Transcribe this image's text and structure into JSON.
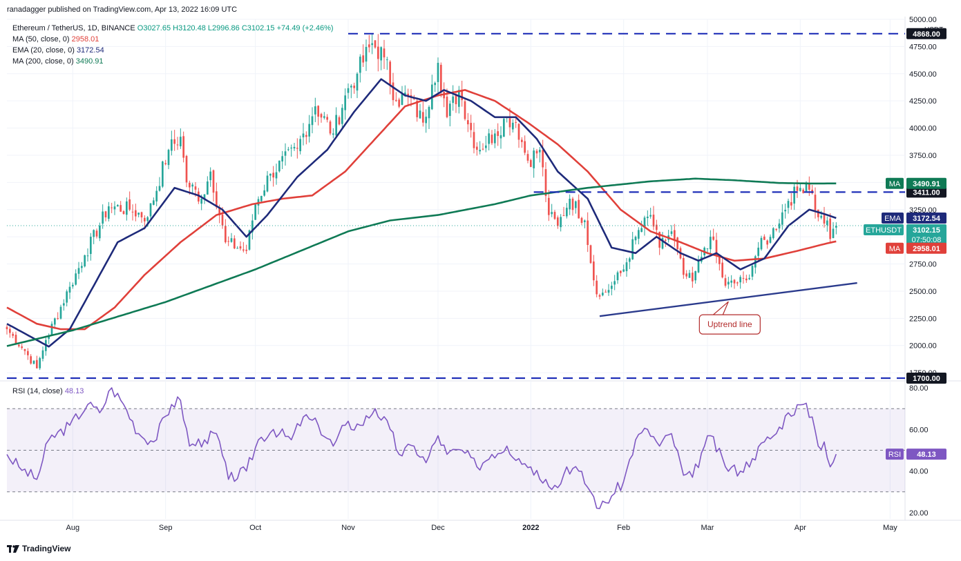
{
  "header": {
    "publisher": "ranadagger published on TradingView.com, Apr 13, 2022 16:09 UTC"
  },
  "legend": {
    "symbol": "Ethereum / TetherUS, 1D, BINANCE",
    "ohlc": "O3027.65  H3120.48  L2996.86  C3102.15  +74.49 (+2.46%)",
    "ma50_label": "MA (50, close, 0)",
    "ma50_value": "2958.01",
    "ema20_label": "EMA (20, close, 0)",
    "ema20_value": "3172.54",
    "ma200_label": "MA (200, close, 0)",
    "ma200_value": "3490.91"
  },
  "rsi_legend": {
    "label": "RSI (14, close)",
    "value": "48.13"
  },
  "footer": {
    "brand": "TradingView"
  },
  "colors": {
    "up": "#26a69a",
    "down": "#ef5350",
    "ema": "#1e2a7a",
    "ma50": "#e0403a",
    "ma200": "#0f7a55",
    "rsi": "#7e57c2",
    "levels": "#1f2fb8",
    "trend": "#2a3a8c",
    "annotation": "#b22a2a"
  },
  "chart_data": [
    {
      "type": "candlestick",
      "title": "Ethereum / TetherUS, 1D, BINANCE",
      "ylabel": "USDT",
      "ylim": [
        1700,
        5000
      ],
      "yticks": [
        1750,
        2000,
        2250,
        2500,
        2750,
        3000,
        3250,
        3500,
        3750,
        4000,
        4250,
        4500,
        4750,
        5000
      ],
      "ytick_labels": [
        "1750.00",
        "2000.00",
        "2250.00",
        "2500.00",
        "2750.00",
        "3000.00",
        "3250.00",
        "3500.00",
        "3750.00",
        "4000.00",
        "4250.00",
        "4500.00",
        "4750.00",
        "5000.00"
      ],
      "x_start": "2021-07-10",
      "x_end": "2022-05-06",
      "xticks": [
        {
          "date": "2021-08-01",
          "label": "Aug"
        },
        {
          "date": "2021-09-01",
          "label": "Sep"
        },
        {
          "date": "2021-10-01",
          "label": "Oct"
        },
        {
          "date": "2021-11-01",
          "label": "Nov"
        },
        {
          "date": "2021-12-01",
          "label": "Dec"
        },
        {
          "date": "2022-01-01",
          "label": "2022"
        },
        {
          "date": "2022-02-01",
          "label": "Feb"
        },
        {
          "date": "2022-03-01",
          "label": "Mar"
        },
        {
          "date": "2022-04-01",
          "label": "Apr"
        },
        {
          "date": "2022-05-01",
          "label": "May"
        }
      ],
      "close_anchors": [
        [
          "2021-07-10",
          2150
        ],
        [
          "2021-07-16",
          1950
        ],
        [
          "2021-07-20",
          1790
        ],
        [
          "2021-07-23",
          2050
        ],
        [
          "2021-07-31",
          2540
        ],
        [
          "2021-08-05",
          2830
        ],
        [
          "2021-08-13",
          3280
        ],
        [
          "2021-08-20",
          3250
        ],
        [
          "2021-08-26",
          3180
        ],
        [
          "2021-09-02",
          3800
        ],
        [
          "2021-09-06",
          3920
        ],
        [
          "2021-09-08",
          3500
        ],
        [
          "2021-09-13",
          3350
        ],
        [
          "2021-09-16",
          3600
        ],
        [
          "2021-09-21",
          2950
        ],
        [
          "2021-09-28",
          2870
        ],
        [
          "2021-10-01",
          3300
        ],
        [
          "2021-10-06",
          3580
        ],
        [
          "2021-10-15",
          3810
        ],
        [
          "2021-10-21",
          4200
        ],
        [
          "2021-10-27",
          3950
        ],
        [
          "2021-10-31",
          4300
        ],
        [
          "2021-11-04",
          4500
        ],
        [
          "2021-11-09",
          4780
        ],
        [
          "2021-11-13",
          4650
        ],
        [
          "2021-11-17",
          4250
        ],
        [
          "2021-11-21",
          4300
        ],
        [
          "2021-11-26",
          4050
        ],
        [
          "2021-11-29",
          4400
        ],
        [
          "2021-12-01",
          4600
        ],
        [
          "2021-12-04",
          4100
        ],
        [
          "2021-12-08",
          4350
        ],
        [
          "2021-12-14",
          3800
        ],
        [
          "2021-12-20",
          3950
        ],
        [
          "2021-12-24",
          4100
        ],
        [
          "2021-12-27",
          4050
        ],
        [
          "2021-12-31",
          3700
        ],
        [
          "2022-01-04",
          3800
        ],
        [
          "2022-01-07",
          3200
        ],
        [
          "2022-01-10",
          3100
        ],
        [
          "2022-01-14",
          3350
        ],
        [
          "2022-01-19",
          3150
        ],
        [
          "2022-01-22",
          2600
        ],
        [
          "2022-01-24",
          2450
        ],
        [
          "2022-01-28",
          2550
        ],
        [
          "2022-02-01",
          2700
        ],
        [
          "2022-02-05",
          3000
        ],
        [
          "2022-02-10",
          3200
        ],
        [
          "2022-02-13",
          2900
        ],
        [
          "2022-02-17",
          3050
        ],
        [
          "2022-02-21",
          2650
        ],
        [
          "2022-02-24",
          2590
        ],
        [
          "2022-02-28",
          2900
        ],
        [
          "2022-03-02",
          3000
        ],
        [
          "2022-03-07",
          2550
        ],
        [
          "2022-03-14",
          2600
        ],
        [
          "2022-03-18",
          2900
        ],
        [
          "2022-03-22",
          3000
        ],
        [
          "2022-03-28",
          3330
        ],
        [
          "2022-04-01",
          3450
        ],
        [
          "2022-04-03",
          3500
        ],
        [
          "2022-04-05",
          3400
        ],
        [
          "2022-04-07",
          3180
        ],
        [
          "2022-04-10",
          3150
        ],
        [
          "2022-04-11",
          2980
        ],
        [
          "2022-04-13",
          3102.15
        ]
      ],
      "moving_averages": [
        {
          "name": "MA (50, close, 0)",
          "color": "#e0403a",
          "points": [
            [
              "2021-07-10",
              2350
            ],
            [
              "2021-07-20",
              2200
            ],
            [
              "2021-07-28",
              2150
            ],
            [
              "2021-08-05",
              2150
            ],
            [
              "2021-08-15",
              2350
            ],
            [
              "2021-08-25",
              2650
            ],
            [
              "2021-09-06",
              2950
            ],
            [
              "2021-09-18",
              3200
            ],
            [
              "2021-09-30",
              3300
            ],
            [
              "2021-10-10",
              3350
            ],
            [
              "2021-10-20",
              3380
            ],
            [
              "2021-10-31",
              3600
            ],
            [
              "2021-11-10",
              3900
            ],
            [
              "2021-11-20",
              4200
            ],
            [
              "2021-12-01",
              4300
            ],
            [
              "2021-12-10",
              4350
            ],
            [
              "2021-12-20",
              4250
            ],
            [
              "2021-12-31",
              4050
            ],
            [
              "2022-01-10",
              3850
            ],
            [
              "2022-01-20",
              3600
            ],
            [
              "2022-01-31",
              3250
            ],
            [
              "2022-02-10",
              3050
            ],
            [
              "2022-02-20",
              2950
            ],
            [
              "2022-03-01",
              2850
            ],
            [
              "2022-03-10",
              2780
            ],
            [
              "2022-03-20",
              2800
            ],
            [
              "2022-03-31",
              2870
            ],
            [
              "2022-04-10",
              2940
            ],
            [
              "2022-04-13",
              2958.01
            ]
          ]
        },
        {
          "name": "EMA (20, close, 0)",
          "color": "#1e2a7a",
          "points": [
            [
              "2021-07-10",
              2200
            ],
            [
              "2021-07-18",
              2080
            ],
            [
              "2021-07-24",
              1990
            ],
            [
              "2021-07-31",
              2150
            ],
            [
              "2021-08-08",
              2550
            ],
            [
              "2021-08-16",
              2950
            ],
            [
              "2021-08-25",
              3080
            ],
            [
              "2021-09-04",
              3450
            ],
            [
              "2021-09-12",
              3380
            ],
            [
              "2021-09-20",
              3250
            ],
            [
              "2021-09-28",
              3000
            ],
            [
              "2021-10-05",
              3200
            ],
            [
              "2021-10-15",
              3550
            ],
            [
              "2021-10-25",
              3800
            ],
            [
              "2021-11-03",
              4150
            ],
            [
              "2021-11-12",
              4450
            ],
            [
              "2021-11-20",
              4300
            ],
            [
              "2021-11-27",
              4250
            ],
            [
              "2021-12-03",
              4350
            ],
            [
              "2021-12-12",
              4250
            ],
            [
              "2021-12-20",
              4100
            ],
            [
              "2021-12-27",
              4100
            ],
            [
              "2022-01-03",
              3900
            ],
            [
              "2022-01-10",
              3600
            ],
            [
              "2022-01-20",
              3350
            ],
            [
              "2022-01-28",
              2900
            ],
            [
              "2022-02-05",
              2850
            ],
            [
              "2022-02-12",
              3000
            ],
            [
              "2022-02-20",
              2850
            ],
            [
              "2022-02-26",
              2780
            ],
            [
              "2022-03-04",
              2850
            ],
            [
              "2022-03-12",
              2700
            ],
            [
              "2022-03-20",
              2800
            ],
            [
              "2022-03-28",
              3100
            ],
            [
              "2022-04-04",
              3250
            ],
            [
              "2022-04-09",
              3210
            ],
            [
              "2022-04-13",
              3172.54
            ]
          ]
        },
        {
          "name": "MA (200, close, 0)",
          "color": "#0f7a55",
          "points": [
            [
              "2021-07-10",
              1995
            ],
            [
              "2021-08-01",
              2140
            ],
            [
              "2021-09-01",
              2400
            ],
            [
              "2021-10-01",
              2700
            ],
            [
              "2021-11-01",
              3050
            ],
            [
              "2021-11-15",
              3150
            ],
            [
              "2021-12-01",
              3200
            ],
            [
              "2021-12-20",
              3300
            ],
            [
              "2022-01-01",
              3380
            ],
            [
              "2022-01-20",
              3450
            ],
            [
              "2022-02-10",
              3510
            ],
            [
              "2022-02-25",
              3535
            ],
            [
              "2022-03-10",
              3520
            ],
            [
              "2022-03-25",
              3495
            ],
            [
              "2022-04-05",
              3490
            ],
            [
              "2022-04-13",
              3490.91
            ]
          ]
        }
      ],
      "horizontal_levels": [
        {
          "value": 4868,
          "label": "4868.00",
          "from": "2021-11-01"
        },
        {
          "value": 3411,
          "label": "3411.00",
          "from": "2022-01-02"
        },
        {
          "value": 1700,
          "label": "1700.00",
          "from": "2021-07-10"
        }
      ],
      "trend_line": {
        "label": "Uptrend line",
        "from": [
          "2022-01-24",
          2270
        ],
        "to": [
          "2022-04-20",
          2575
        ]
      },
      "price_tags": [
        {
          "name": "MA",
          "value": 3490.91,
          "text": "3490.91",
          "color": "#0f7a55"
        },
        {
          "name": "EMA",
          "value": 3172.54,
          "text": "3172.54",
          "color": "#1e2a7a"
        },
        {
          "name": "ETHUSDT",
          "value": 3102.15,
          "text": "3102.15",
          "sub": "07:50:08",
          "color": "#26a69a"
        },
        {
          "name": "MA",
          "value": 2958.01,
          "text": "2958.01",
          "color": "#e0403a"
        }
      ],
      "last_price": 3102.15
    },
    {
      "type": "line",
      "title": "RSI (14, close)",
      "ylim": [
        17,
        83
      ],
      "yticks": [
        20,
        40,
        60,
        80
      ],
      "ytick_labels": [
        "20.00",
        "40.00",
        "60.00",
        "80.00"
      ],
      "band": [
        30,
        70
      ],
      "midline": 50,
      "series": [
        {
          "name": "RSI",
          "color": "#7e57c2",
          "points": [
            [
              "2021-07-10",
              48
            ],
            [
              "2021-07-14",
              42
            ],
            [
              "2021-07-20",
              36
            ],
            [
              "2021-07-24",
              55
            ],
            [
              "2021-07-31",
              62
            ],
            [
              "2021-08-06",
              72
            ],
            [
              "2021-08-10",
              68
            ],
            [
              "2021-08-14",
              80
            ],
            [
              "2021-08-18",
              72
            ],
            [
              "2021-08-23",
              58
            ],
            [
              "2021-08-28",
              54
            ],
            [
              "2021-09-03",
              72
            ],
            [
              "2021-09-06",
              74
            ],
            [
              "2021-09-09",
              52
            ],
            [
              "2021-09-14",
              55
            ],
            [
              "2021-09-18",
              58
            ],
            [
              "2021-09-22",
              36
            ],
            [
              "2021-09-28",
              40
            ],
            [
              "2021-10-02",
              55
            ],
            [
              "2021-10-07",
              60
            ],
            [
              "2021-10-13",
              55
            ],
            [
              "2021-10-17",
              66
            ],
            [
              "2021-10-22",
              62
            ],
            [
              "2021-10-27",
              52
            ],
            [
              "2021-10-31",
              62
            ],
            [
              "2021-11-05",
              62
            ],
            [
              "2021-11-10",
              70
            ],
            [
              "2021-11-15",
              60
            ],
            [
              "2021-11-18",
              48
            ],
            [
              "2021-11-23",
              52
            ],
            [
              "2021-11-27",
              44
            ],
            [
              "2021-12-01",
              57
            ],
            [
              "2021-12-04",
              48
            ],
            [
              "2021-12-09",
              50
            ],
            [
              "2021-12-14",
              42
            ],
            [
              "2021-12-19",
              48
            ],
            [
              "2021-12-24",
              52
            ],
            [
              "2021-12-28",
              46
            ],
            [
              "2022-01-01",
              42
            ],
            [
              "2022-01-06",
              36
            ],
            [
              "2022-01-10",
              32
            ],
            [
              "2022-01-13",
              42
            ],
            [
              "2022-01-17",
              40
            ],
            [
              "2022-01-21",
              30
            ],
            [
              "2022-01-24",
              22
            ],
            [
              "2022-01-28",
              28
            ],
            [
              "2022-02-01",
              35
            ],
            [
              "2022-02-05",
              55
            ],
            [
              "2022-02-09",
              60
            ],
            [
              "2022-02-13",
              52
            ],
            [
              "2022-02-17",
              58
            ],
            [
              "2022-02-21",
              38
            ],
            [
              "2022-02-24",
              37
            ],
            [
              "2022-02-28",
              52
            ],
            [
              "2022-03-02",
              57
            ],
            [
              "2022-03-07",
              42
            ],
            [
              "2022-03-12",
              40
            ],
            [
              "2022-03-16",
              46
            ],
            [
              "2022-03-20",
              54
            ],
            [
              "2022-03-24",
              58
            ],
            [
              "2022-03-28",
              68
            ],
            [
              "2022-04-02",
              72
            ],
            [
              "2022-04-05",
              66
            ],
            [
              "2022-04-07",
              52
            ],
            [
              "2022-04-09",
              54
            ],
            [
              "2022-04-11",
              42
            ],
            [
              "2022-04-13",
              48.13
            ]
          ]
        }
      ],
      "value_tag": {
        "name": "RSI",
        "value": 48.13,
        "text": "48.13"
      }
    }
  ]
}
